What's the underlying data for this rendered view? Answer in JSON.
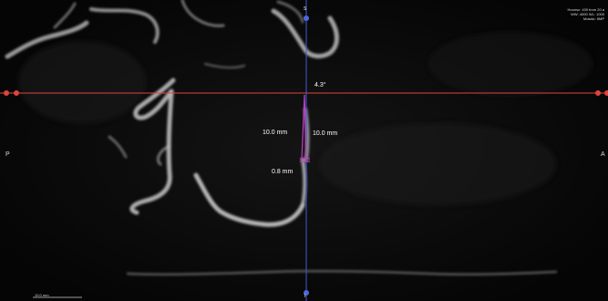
{
  "info": {
    "line1": "Hounsc: 439 from 20 a",
    "line2": "WW: 4000 WL: 1000",
    "line3": "Mosaic: 5MP"
  },
  "orientation": {
    "left": "P",
    "right": "A",
    "top": "S",
    "bottom": "I"
  },
  "measurements": {
    "angle": "4.3°",
    "length_left": "10.0 mm",
    "length_right": "10.0 mm",
    "thickness": "0.8 mm"
  },
  "scale_label": "10.0 mm",
  "colors": {
    "horizontal_reference": "#e0443c",
    "vertical_reference": "#3d5bd9",
    "implant_marker": "#c03cc4",
    "bone": "#cfcfcf"
  }
}
